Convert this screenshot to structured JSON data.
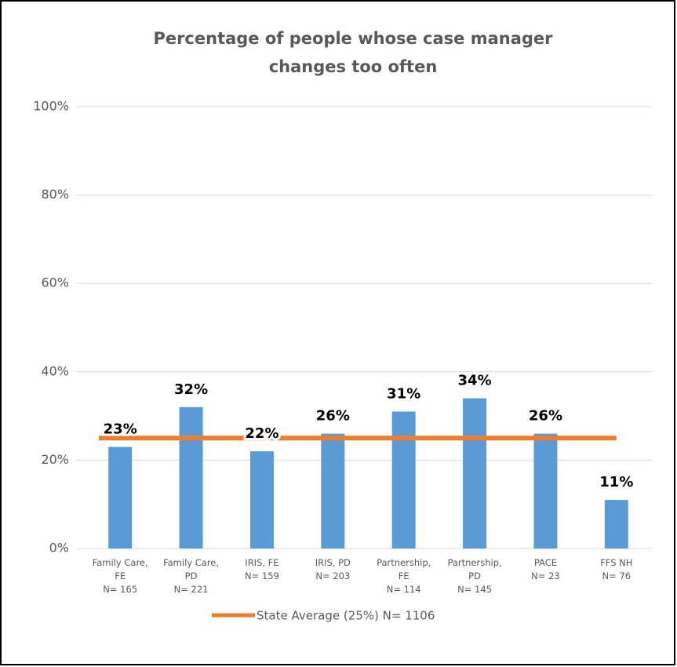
{
  "chart_data": {
    "type": "bar",
    "title": [
      "Percentage of people whose case manager",
      "changes too often"
    ],
    "categories": [
      [
        "Family Care,",
        "FE",
        "N= 165"
      ],
      [
        "Family Care,",
        "PD",
        "N= 221"
      ],
      [
        "IRIS, FE",
        "N= 159"
      ],
      [
        "IRIS, PD",
        "N= 203"
      ],
      [
        "Partnership,",
        "FE",
        "N= 114"
      ],
      [
        "Partnership,",
        "PD",
        "N= 145"
      ],
      [
        "PACE",
        "N= 23"
      ],
      [
        "FFS NH",
        "N= 76"
      ]
    ],
    "values": [
      23,
      32,
      22,
      26,
      31,
      34,
      26,
      11
    ],
    "value_labels": [
      "23%",
      "32%",
      "22%",
      "26%",
      "31%",
      "34%",
      "26%",
      "11%"
    ],
    "color": "#5b9bd5",
    "reference_line": {
      "name": "State Average (25%) N= 1106",
      "value": 25,
      "color": "#ed7d31"
    },
    "ylim": [
      0,
      100
    ],
    "yticks": [
      {
        "value": 0,
        "label": "0%"
      },
      {
        "value": 20,
        "label": "20%"
      },
      {
        "value": 40,
        "label": "40%"
      },
      {
        "value": 60,
        "label": "60%"
      },
      {
        "value": 80,
        "label": "80%"
      },
      {
        "value": 100,
        "label": "100%"
      }
    ],
    "grid": true
  }
}
